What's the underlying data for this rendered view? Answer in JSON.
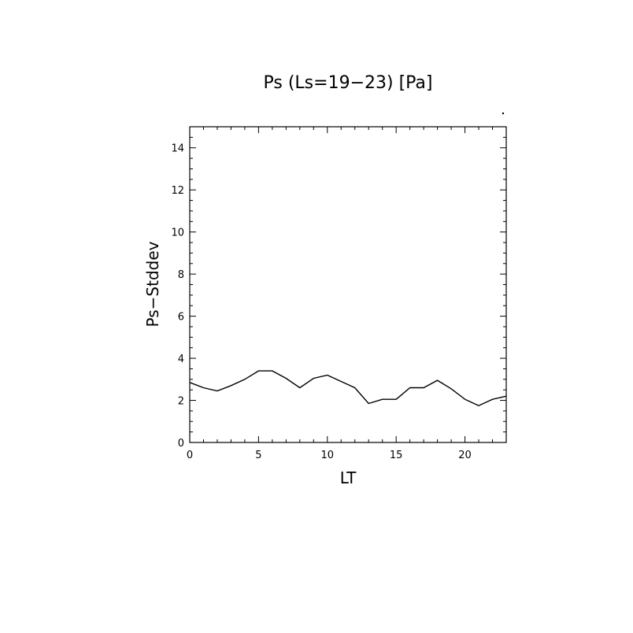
{
  "chart_data": {
    "type": "line",
    "title": "Ps (Ls=19−23) [Pa]",
    "xlabel": "LT",
    "ylabel": "Ps−Stddev",
    "xlim": [
      0,
      23
    ],
    "ylim": [
      0,
      15
    ],
    "xticks": [
      0,
      5,
      10,
      15,
      20
    ],
    "yticks": [
      0,
      2,
      4,
      6,
      8,
      10,
      12,
      14
    ],
    "grid": false,
    "series": [
      {
        "color": "#000000",
        "x": [
          0,
          1,
          2,
          3,
          4,
          5,
          6,
          7,
          8,
          9,
          10,
          11,
          12,
          13,
          14,
          15,
          16,
          17,
          18,
          19,
          20,
          21,
          22,
          23
        ],
        "y": [
          2.85,
          2.6,
          2.45,
          2.7,
          3.0,
          3.4,
          3.4,
          3.05,
          2.6,
          3.05,
          3.2,
          2.9,
          2.6,
          1.85,
          2.05,
          2.05,
          2.6,
          2.6,
          2.95,
          2.55,
          2.05,
          1.75,
          2.05,
          2.2
        ]
      }
    ]
  }
}
